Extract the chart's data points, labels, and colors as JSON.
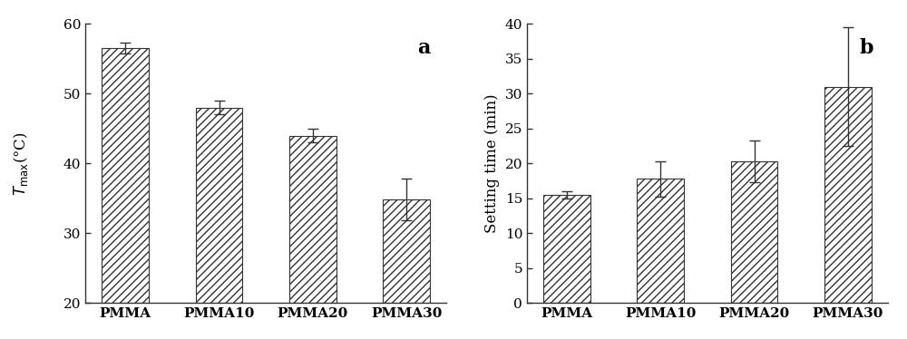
{
  "categories": [
    "PMMA",
    "PMMA10",
    "PMMA20",
    "PMMA30"
  ],
  "chart_a": {
    "values": [
      56.5,
      48.0,
      44.0,
      34.8
    ],
    "errors": [
      0.8,
      1.0,
      1.0,
      3.0
    ],
    "ylabel": "T_max(°C)",
    "ylim": [
      20,
      60
    ],
    "yticks": [
      20,
      30,
      40,
      50,
      60
    ],
    "label": "a"
  },
  "chart_b": {
    "values": [
      15.5,
      17.8,
      20.3,
      31.0
    ],
    "errors": [
      0.5,
      2.5,
      3.0,
      8.5
    ],
    "ylabel": "Setting time (min)",
    "ylim": [
      0,
      40
    ],
    "yticks": [
      0,
      5,
      10,
      15,
      20,
      25,
      30,
      35,
      40
    ],
    "label": "b"
  },
  "bar_color": "#ffffff",
  "hatch": "////",
  "edgecolor": "#333333",
  "errorbar_color": "#333333",
  "tick_fontsize": 11,
  "label_fontsize": 12,
  "bar_width": 0.5,
  "background_color": "#ffffff"
}
